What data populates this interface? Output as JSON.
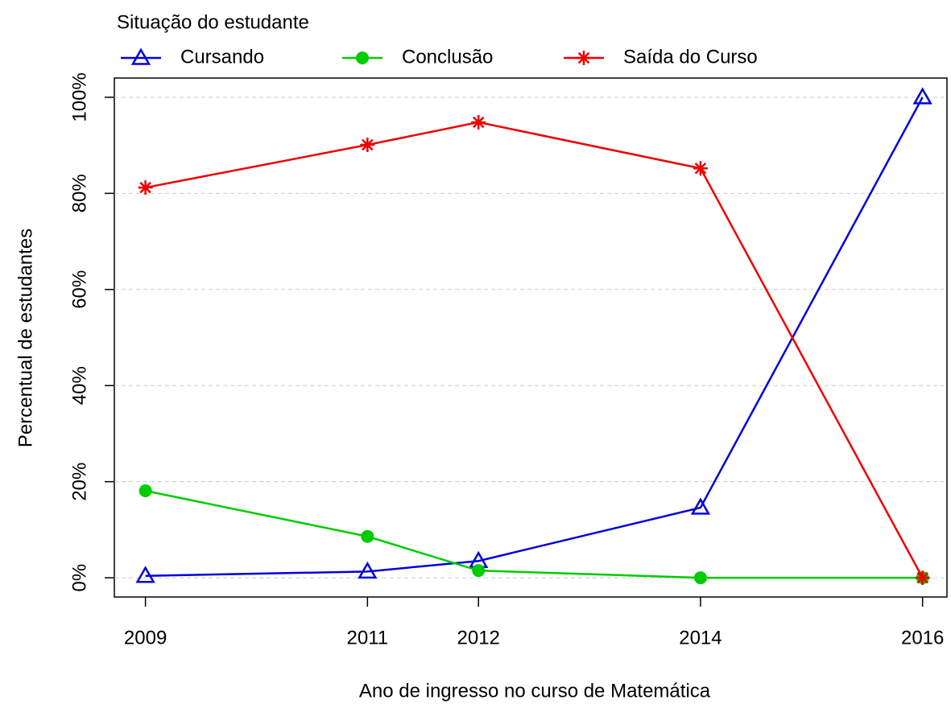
{
  "chart_data": {
    "type": "line",
    "legend_title": "Situação do estudante",
    "x_label": "Ano de ingresso no curso de Matemática",
    "y_label": "Percentual de estudantes",
    "x": [
      2009,
      2011,
      2012,
      2014,
      2016
    ],
    "xticks": [
      2009,
      2011,
      2012,
      2014,
      2016
    ],
    "xlim": [
      2008.72,
      2016.22
    ],
    "ylim": [
      -4,
      104
    ],
    "yticks": [
      {
        "value": 0,
        "label": "0%"
      },
      {
        "value": 20,
        "label": "20%"
      },
      {
        "value": 40,
        "label": "40%"
      },
      {
        "value": 60,
        "label": "60%"
      },
      {
        "value": 80,
        "label": "80%"
      },
      {
        "value": 100,
        "label": "100%"
      }
    ],
    "grid": true,
    "series": [
      {
        "name": "Cursando",
        "color": "#0000dd",
        "marker": "triangle",
        "values": [
          0.4,
          1.3,
          3.5,
          14.6,
          100
        ]
      },
      {
        "name": "Conclusão",
        "color": "#00cc00",
        "marker": "circle",
        "values": [
          18.1,
          8.6,
          1.5,
          0,
          0
        ]
      },
      {
        "name": "Saída do Curso",
        "color": "#ee0000",
        "marker": "asterisk",
        "values": [
          81.2,
          90.1,
          94.8,
          85.2,
          0
        ]
      }
    ]
  }
}
